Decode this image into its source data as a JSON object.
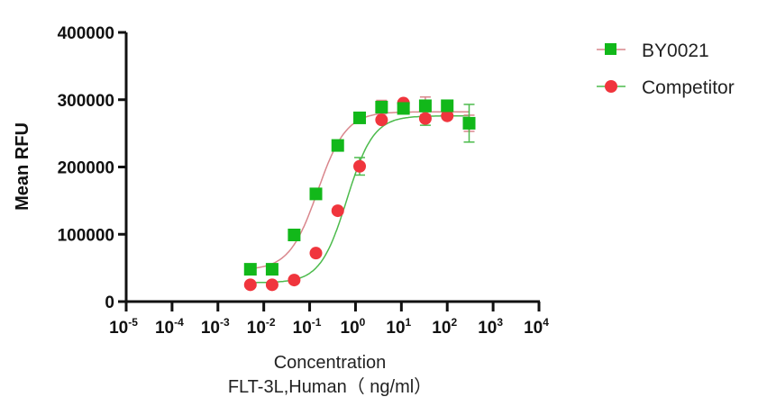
{
  "chart_data": {
    "type": "scatter",
    "xlabel": "Concentration",
    "xlabel_line2": "FLT-3L,Human（ ng/ml）",
    "ylabel": "Mean RFU",
    "xscale": "log",
    "xlim": [
      1e-05,
      10000
    ],
    "ylim": [
      0,
      400000
    ],
    "y_ticks": [
      "0",
      "100000",
      "200000",
      "300000",
      "400000"
    ],
    "y_tick_values": [
      0,
      100000,
      200000,
      300000,
      400000
    ],
    "x_tick_exponents": [
      "-5",
      "-4",
      "-3",
      "-2",
      "-1",
      "0",
      "1",
      "2",
      "3",
      "4"
    ],
    "x_tick_base": "10",
    "grid": false,
    "legend_placement": "top-right",
    "x": [
      0.0051,
      0.0152,
      0.046,
      0.137,
      0.41,
      1.23,
      3.7,
      11.1,
      33.3,
      100,
      300
    ],
    "series": [
      {
        "name": "BY0021",
        "marker": "square",
        "marker_color": "#12b81a",
        "curve_color": "#d9868c",
        "values": [
          48000,
          48000,
          99000,
          160000,
          232000,
          273000,
          289000,
          287000,
          291000,
          291000,
          265000
        ],
        "errors": [
          0,
          0,
          0,
          0,
          0,
          0,
          10000,
          0,
          13000,
          0,
          12000
        ],
        "fit": {
          "bottom": 47000,
          "top": 282000,
          "ec50": 0.15,
          "hill": 1.4
        }
      },
      {
        "name": "Competitor",
        "marker": "circle",
        "marker_color": "#f0353d",
        "curve_color": "#4cbb4c",
        "values": [
          25000,
          25000,
          32000,
          72000,
          135000,
          201000,
          270000,
          295000,
          272000,
          276000,
          265000
        ],
        "errors": [
          0,
          0,
          0,
          0,
          0,
          13000,
          0,
          0,
          10000,
          0,
          28000
        ],
        "fit": {
          "bottom": 28000,
          "top": 276000,
          "ec50": 0.65,
          "hill": 1.5
        }
      }
    ]
  }
}
